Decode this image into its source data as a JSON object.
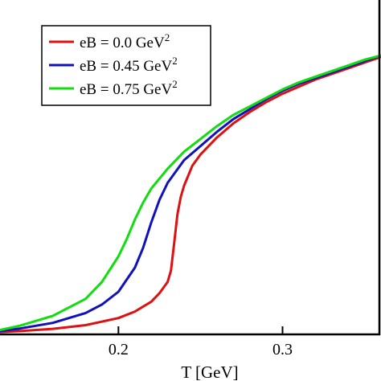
{
  "chart_data": {
    "type": "line",
    "xlabel": "T [GeV]",
    "xlim": [
      0.12,
      0.36
    ],
    "ylim": [
      0,
      1
    ],
    "x_ticks": [
      0.2,
      0.3
    ],
    "x_tick_labels": [
      "0.2",
      "0.3"
    ],
    "grid": false,
    "legend_position": "top-left",
    "series": [
      {
        "name": "eB = 0.0 GeV",
        "name_superscript": "2",
        "color": "#dd1111",
        "x": [
          0.12,
          0.14,
          0.16,
          0.18,
          0.2,
          0.21,
          0.22,
          0.225,
          0.23,
          0.232,
          0.234,
          0.236,
          0.238,
          0.24,
          0.245,
          0.25,
          0.26,
          0.27,
          0.28,
          0.29,
          0.3,
          0.31,
          0.32,
          0.33,
          0.34,
          0.35,
          0.36
        ],
        "y": [
          0.0,
          0.006,
          0.014,
          0.027,
          0.052,
          0.075,
          0.11,
          0.14,
          0.18,
          0.22,
          0.32,
          0.42,
          0.48,
          0.52,
          0.59,
          0.63,
          0.69,
          0.74,
          0.78,
          0.815,
          0.845,
          0.87,
          0.895,
          0.915,
          0.935,
          0.955,
          0.975
        ]
      },
      {
        "name": "eB = 0.45 GeV",
        "name_superscript": "2",
        "color": "#1111bb",
        "x": [
          0.12,
          0.14,
          0.16,
          0.18,
          0.19,
          0.2,
          0.21,
          0.215,
          0.22,
          0.225,
          0.23,
          0.24,
          0.25,
          0.26,
          0.27,
          0.28,
          0.29,
          0.3,
          0.31,
          0.32,
          0.33,
          0.34,
          0.35,
          0.36
        ],
        "y": [
          0.0,
          0.015,
          0.035,
          0.07,
          0.1,
          0.145,
          0.23,
          0.3,
          0.39,
          0.47,
          0.53,
          0.61,
          0.66,
          0.71,
          0.755,
          0.79,
          0.825,
          0.855,
          0.88,
          0.9,
          0.92,
          0.94,
          0.96,
          0.98
        ]
      },
      {
        "name": "eB = 0.75 GeV",
        "name_superscript": "2",
        "color": "#11dd11",
        "x": [
          0.12,
          0.14,
          0.16,
          0.18,
          0.19,
          0.2,
          0.205,
          0.21,
          0.215,
          0.22,
          0.23,
          0.24,
          0.25,
          0.26,
          0.27,
          0.28,
          0.29,
          0.3,
          0.31,
          0.32,
          0.33,
          0.34,
          0.35,
          0.36
        ],
        "y": [
          0.0,
          0.025,
          0.06,
          0.12,
          0.18,
          0.27,
          0.33,
          0.4,
          0.46,
          0.51,
          0.58,
          0.64,
          0.685,
          0.73,
          0.77,
          0.8,
          0.83,
          0.86,
          0.885,
          0.905,
          0.925,
          0.945,
          0.965,
          0.98
        ]
      }
    ]
  }
}
